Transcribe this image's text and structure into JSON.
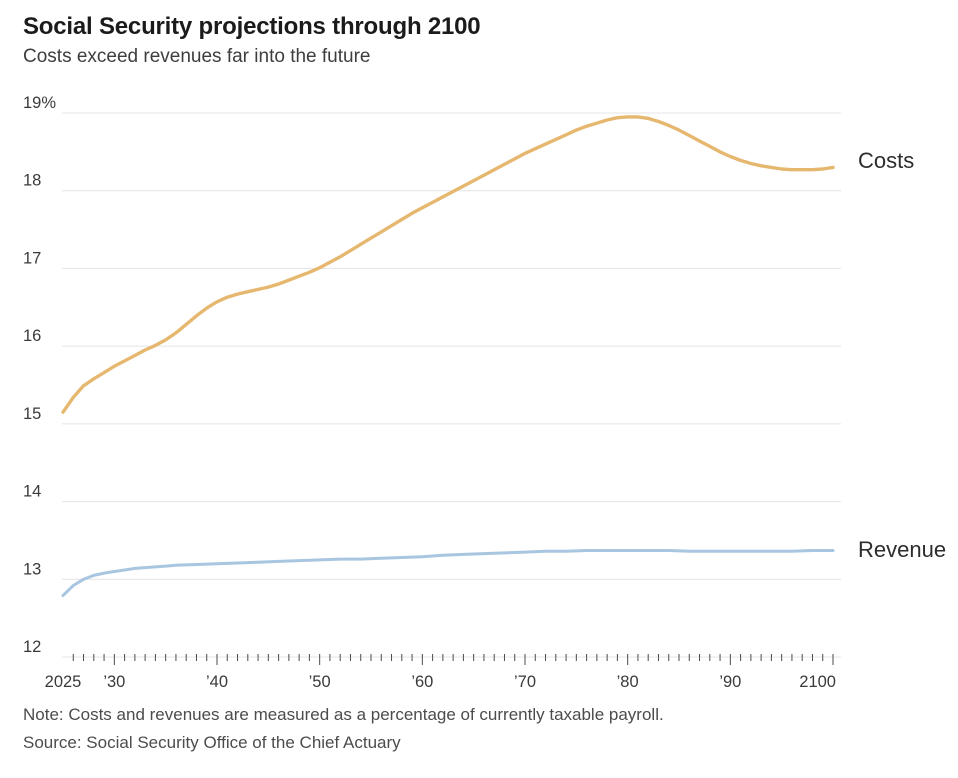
{
  "header": {
    "title": "Social Security projections through 2100",
    "subtitle": "Costs exceed revenues far into the future"
  },
  "chart_data": {
    "type": "line",
    "title": "Social Security projections through 2100",
    "subtitle": "Costs exceed revenues far into the future",
    "unit": "percent of currently taxable payroll",
    "xlim": [
      2025,
      2100
    ],
    "ylim": [
      12,
      19
    ],
    "grid": "horizontal-only",
    "legend_position": "labels-at-right-edge",
    "yticks": [
      {
        "value": 19,
        "label": "19%"
      },
      {
        "value": 18,
        "label": "18"
      },
      {
        "value": 17,
        "label": "17"
      },
      {
        "value": 16,
        "label": "16"
      },
      {
        "value": 15,
        "label": "15"
      },
      {
        "value": 14,
        "label": "14"
      },
      {
        "value": 13,
        "label": "13"
      },
      {
        "value": 12,
        "label": "12"
      }
    ],
    "xticks": [
      {
        "value": 2025,
        "label": "2025"
      },
      {
        "value": 2030,
        "label": "’30"
      },
      {
        "value": 2040,
        "label": "’40"
      },
      {
        "value": 2050,
        "label": "’50"
      },
      {
        "value": 2060,
        "label": "’60"
      },
      {
        "value": 2070,
        "label": "’70"
      },
      {
        "value": 2080,
        "label": "’80"
      },
      {
        "value": 2090,
        "label": "’90"
      },
      {
        "value": 2100,
        "label": "2100"
      }
    ],
    "minor_xtick_interval_years": 1,
    "series": [
      {
        "name": "Costs",
        "end_label": "Costs",
        "color": "#e6b86f",
        "points": [
          [
            2025,
            15.15
          ],
          [
            2026,
            15.34
          ],
          [
            2027,
            15.49
          ],
          [
            2028,
            15.58
          ],
          [
            2029,
            15.66
          ],
          [
            2030,
            15.74
          ],
          [
            2031,
            15.81
          ],
          [
            2032,
            15.88
          ],
          [
            2033,
            15.95
          ],
          [
            2034,
            16.01
          ],
          [
            2035,
            16.08
          ],
          [
            2036,
            16.17
          ],
          [
            2037,
            16.28
          ],
          [
            2038,
            16.39
          ],
          [
            2039,
            16.49
          ],
          [
            2040,
            16.57
          ],
          [
            2041,
            16.63
          ],
          [
            2042,
            16.67
          ],
          [
            2043,
            16.7
          ],
          [
            2044,
            16.73
          ],
          [
            2045,
            16.76
          ],
          [
            2046,
            16.8
          ],
          [
            2047,
            16.85
          ],
          [
            2048,
            16.9
          ],
          [
            2049,
            16.95
          ],
          [
            2050,
            17.01
          ],
          [
            2051,
            17.08
          ],
          [
            2052,
            17.15
          ],
          [
            2053,
            17.23
          ],
          [
            2054,
            17.31
          ],
          [
            2055,
            17.39
          ],
          [
            2056,
            17.47
          ],
          [
            2057,
            17.55
          ],
          [
            2058,
            17.63
          ],
          [
            2059,
            17.71
          ],
          [
            2060,
            17.78
          ],
          [
            2061,
            17.85
          ],
          [
            2062,
            17.92
          ],
          [
            2063,
            17.99
          ],
          [
            2064,
            18.06
          ],
          [
            2065,
            18.13
          ],
          [
            2066,
            18.2
          ],
          [
            2067,
            18.27
          ],
          [
            2068,
            18.34
          ],
          [
            2069,
            18.41
          ],
          [
            2070,
            18.48
          ],
          [
            2071,
            18.54
          ],
          [
            2072,
            18.6
          ],
          [
            2073,
            18.66
          ],
          [
            2074,
            18.72
          ],
          [
            2075,
            18.78
          ],
          [
            2076,
            18.83
          ],
          [
            2077,
            18.87
          ],
          [
            2078,
            18.91
          ],
          [
            2079,
            18.94
          ],
          [
            2080,
            18.95
          ],
          [
            2081,
            18.95
          ],
          [
            2082,
            18.93
          ],
          [
            2083,
            18.89
          ],
          [
            2084,
            18.84
          ],
          [
            2085,
            18.78
          ],
          [
            2086,
            18.71
          ],
          [
            2087,
            18.64
          ],
          [
            2088,
            18.57
          ],
          [
            2089,
            18.5
          ],
          [
            2090,
            18.44
          ],
          [
            2091,
            18.39
          ],
          [
            2092,
            18.35
          ],
          [
            2093,
            18.32
          ],
          [
            2094,
            18.3
          ],
          [
            2095,
            18.28
          ],
          [
            2096,
            18.27
          ],
          [
            2097,
            18.27
          ],
          [
            2098,
            18.27
          ],
          [
            2099,
            18.28
          ],
          [
            2100,
            18.3
          ]
        ]
      },
      {
        "name": "Revenue",
        "end_label": "Revenue",
        "color": "#a8c6df",
        "points": [
          [
            2025,
            12.79
          ],
          [
            2026,
            12.92
          ],
          [
            2027,
            13.0
          ],
          [
            2028,
            13.05
          ],
          [
            2029,
            13.08
          ],
          [
            2030,
            13.1
          ],
          [
            2031,
            13.12
          ],
          [
            2032,
            13.14
          ],
          [
            2033,
            13.15
          ],
          [
            2034,
            13.16
          ],
          [
            2035,
            13.17
          ],
          [
            2036,
            13.18
          ],
          [
            2038,
            13.19
          ],
          [
            2040,
            13.2
          ],
          [
            2042,
            13.21
          ],
          [
            2044,
            13.22
          ],
          [
            2046,
            13.23
          ],
          [
            2048,
            13.24
          ],
          [
            2050,
            13.25
          ],
          [
            2052,
            13.26
          ],
          [
            2054,
            13.26
          ],
          [
            2056,
            13.27
          ],
          [
            2058,
            13.28
          ],
          [
            2060,
            13.29
          ],
          [
            2062,
            13.31
          ],
          [
            2064,
            13.32
          ],
          [
            2066,
            13.33
          ],
          [
            2068,
            13.34
          ],
          [
            2070,
            13.35
          ],
          [
            2072,
            13.36
          ],
          [
            2074,
            13.36
          ],
          [
            2076,
            13.37
          ],
          [
            2078,
            13.37
          ],
          [
            2080,
            13.37
          ],
          [
            2082,
            13.37
          ],
          [
            2084,
            13.37
          ],
          [
            2086,
            13.36
          ],
          [
            2088,
            13.36
          ],
          [
            2090,
            13.36
          ],
          [
            2092,
            13.36
          ],
          [
            2094,
            13.36
          ],
          [
            2096,
            13.36
          ],
          [
            2098,
            13.37
          ],
          [
            2100,
            13.37
          ]
        ]
      }
    ]
  },
  "footer": {
    "note": "Note: Costs and revenues are measured as a percentage of currently taxable payroll.",
    "source": "Source: Social Security Office of the Chief Actuary"
  },
  "colors": {
    "costs_line": "#e6b86f",
    "revenue_line": "#a8c6df",
    "gridline": "#e4e4e4",
    "axis_text": "#3a3a3a",
    "tick_mark": "#4b4b4b",
    "title_text": "#1b1b1b",
    "subtitle_text": "#3e3e3e",
    "footer_text": "#4c4c4c"
  }
}
